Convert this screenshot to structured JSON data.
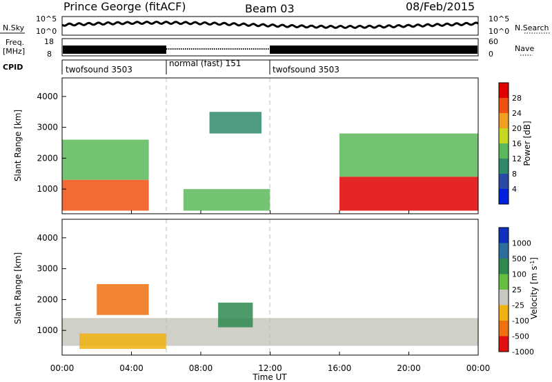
{
  "header": {
    "station": "Prince George (fitACF)",
    "beam": "Beam 03",
    "date": "08/Feb/2015"
  },
  "noise_panel": {
    "left_label": "N.Sky",
    "right_label": "N.Search",
    "tick_top": "10^5",
    "tick_bottom": "10^0"
  },
  "freq_panel": {
    "label_line1": "Freq.",
    "label_line2": "[MHz]",
    "left_ticks": [
      "18",
      "8"
    ],
    "right_ticks": [
      "60",
      "0"
    ],
    "right_label": "Nave"
  },
  "cpid": {
    "label": "CPID",
    "segments": [
      {
        "name": "twofsound 3503",
        "start": 0.0,
        "end": 6.0
      },
      {
        "name": "normal (fast) 151",
        "start": 6.0,
        "end": 12.0
      },
      {
        "name": "twofsound 3503",
        "start": 12.0,
        "end": 24.0
      }
    ]
  },
  "x_axis": {
    "title": "Time UT",
    "ticks": [
      "00:00",
      "04:00",
      "08:00",
      "12:00",
      "16:00",
      "20:00",
      "00:00"
    ],
    "range_hours": [
      0,
      24
    ]
  },
  "chart_data": [
    {
      "type": "heatmap",
      "panel": "power",
      "ylabel": "Slant Range [km]",
      "yticks": [
        "1000",
        "2000",
        "3000",
        "4000"
      ],
      "ylim": [
        200,
        4600
      ],
      "colorbar_label": "Power [dB]",
      "colorbar_ticks": [
        "4",
        "8",
        "12",
        "16",
        "20",
        "24",
        "28"
      ],
      "colors": [
        "#0020e0",
        "#2a4aa8",
        "#2f8a6a",
        "#5ab85a",
        "#c8d820",
        "#f0a020",
        "#f05010",
        "#e00000"
      ],
      "approx_regions_hours_km": [
        {
          "x": [
            0,
            5
          ],
          "y": [
            300,
            1300
          ],
          "level": 24
        },
        {
          "x": [
            0,
            5
          ],
          "y": [
            1300,
            2600
          ],
          "level": 12
        },
        {
          "x": [
            7,
            12
          ],
          "y": [
            300,
            1000
          ],
          "level": 12
        },
        {
          "x": [
            8.5,
            11.5
          ],
          "y": [
            2800,
            3500
          ],
          "level": 8
        },
        {
          "x": [
            16,
            24
          ],
          "y": [
            300,
            1400
          ],
          "level": 26
        },
        {
          "x": [
            16,
            24
          ],
          "y": [
            1400,
            2800
          ],
          "level": 10
        }
      ]
    },
    {
      "type": "heatmap",
      "panel": "velocity",
      "ylabel": "Slant Range [km]",
      "yticks": [
        "1000",
        "2000",
        "3000",
        "4000"
      ],
      "ylim": [
        200,
        4600
      ],
      "colorbar_label": "Velocity [m s^-1]",
      "colorbar_ticks": [
        "1000",
        "500",
        "100",
        "25",
        "-25",
        "-100",
        "-500",
        "-1000"
      ],
      "colors": [
        "#1030c0",
        "#2e6e9e",
        "#2e8a50",
        "#66c040",
        "#c8c8c0",
        "#f0b010",
        "#f07010",
        "#e01010"
      ],
      "approx_regions_hours_km": [
        {
          "x": [
            0,
            24
          ],
          "y": [
            500,
            1400
          ],
          "level": 0
        },
        {
          "x": [
            1,
            6
          ],
          "y": [
            400,
            900
          ],
          "level": -100
        },
        {
          "x": [
            9,
            11
          ],
          "y": [
            1100,
            1900
          ],
          "level": 100
        },
        {
          "x": [
            2,
            5
          ],
          "y": [
            1500,
            2500
          ],
          "level": -500
        }
      ]
    }
  ]
}
